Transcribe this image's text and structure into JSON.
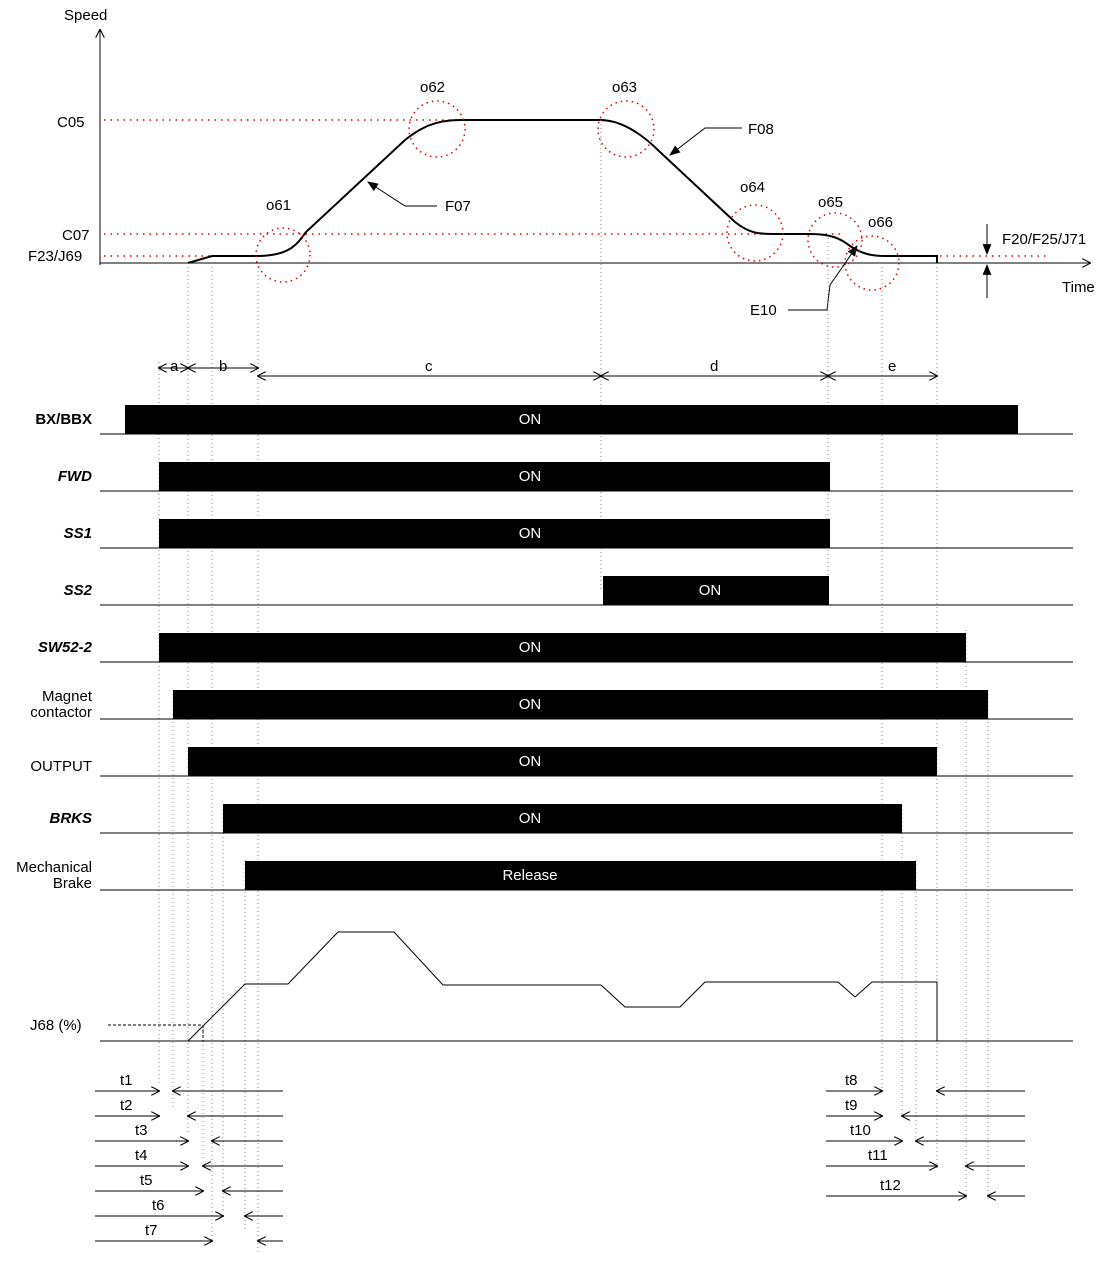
{
  "axes": {
    "speed_label": "Speed",
    "time_label": "Time",
    "torque_label": "J68 (%)"
  },
  "speed_levels": {
    "c05": "C05",
    "c07": "C07",
    "f23": "F23/J69",
    "f20": "F20/F25/J71"
  },
  "curve_labels": {
    "f07": "F07",
    "f08": "F08",
    "e10": "E10",
    "o61": "o61",
    "o62": "o62",
    "o63": "o63",
    "o64": "o64",
    "o65": "o65",
    "o66": "o66"
  },
  "intervals": [
    "a",
    "b",
    "c",
    "d",
    "e"
  ],
  "signals": [
    {
      "name": "BX/BBX",
      "state": "ON"
    },
    {
      "name": "FWD",
      "state": "ON"
    },
    {
      "name": "SS1",
      "state": "ON"
    },
    {
      "name": "SS2",
      "state": "ON"
    },
    {
      "name": "SW52-2",
      "state": "ON"
    },
    {
      "name_line1": "Magnet",
      "name_line2": "contactor",
      "state": "ON"
    },
    {
      "name": "OUTPUT",
      "state": "ON"
    },
    {
      "name": "BRKS",
      "state": "ON"
    },
    {
      "name_line1": "Mechanical",
      "name_line2": "Brake",
      "state": "Release"
    }
  ],
  "timers_left": [
    "t1",
    "t2",
    "t3",
    "t4",
    "t5",
    "t6",
    "t7"
  ],
  "timers_right": [
    "t8",
    "t9",
    "t10",
    "t11",
    "t12"
  ]
}
